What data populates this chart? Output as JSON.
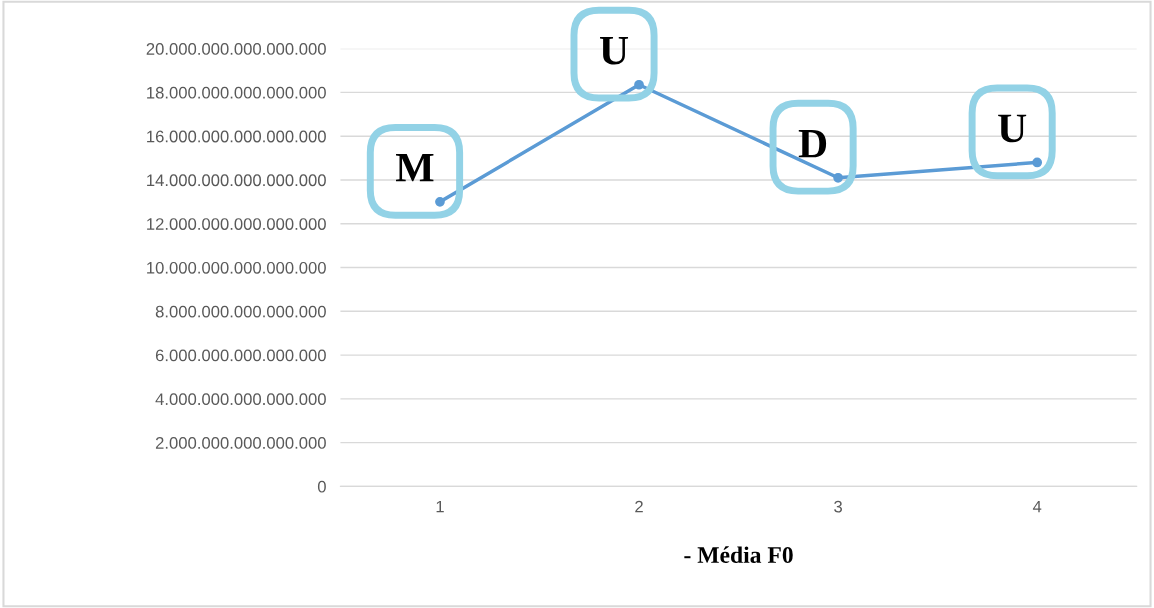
{
  "chart_data": {
    "type": "line",
    "xlabel": "- Média F0",
    "categories": [
      "1",
      "2",
      "3",
      "4"
    ],
    "series": [
      {
        "color": "#5b9bd5",
        "values": [
          13000000000000000,
          18350000000000000,
          14100000000000000,
          14800000000000000
        ]
      }
    ],
    "ylim": [
      0,
      20000000000000000
    ],
    "yticks": [
      {
        "value": 0,
        "label": "0"
      },
      {
        "value": 2000000000000000,
        "label": "2.000.000.000.000.000"
      },
      {
        "value": 4000000000000000,
        "label": "4.000.000.000.000.000"
      },
      {
        "value": 6000000000000000,
        "label": "6.000.000.000.000.000"
      },
      {
        "value": 8000000000000000,
        "label": "8.000.000.000.000.000"
      },
      {
        "value": 10000000000000000,
        "label": "10.000.000.000.000.000"
      },
      {
        "value": 12000000000000000,
        "label": "12.000.000.000.000.000"
      },
      {
        "value": 14000000000000000,
        "label": "14.000.000.000.000.000"
      },
      {
        "value": 16000000000000000,
        "label": "16.000.000.000.000.000"
      },
      {
        "value": 18000000000000000,
        "label": "18.000.000.000.000.000"
      },
      {
        "value": 20000000000000000,
        "label": "20.000.000.000.000.000"
      }
    ],
    "annotations": [
      {
        "text": "M",
        "x": "1",
        "y": 13000000000000000
      },
      {
        "text": "U",
        "x": "2",
        "y": 18350000000000000
      },
      {
        "text": "D",
        "x": "3",
        "y": 14100000000000000
      },
      {
        "text": "U",
        "x": "4",
        "y": 14800000000000000
      }
    ],
    "grid": "y",
    "marker": "circle",
    "line_style": "solid"
  }
}
